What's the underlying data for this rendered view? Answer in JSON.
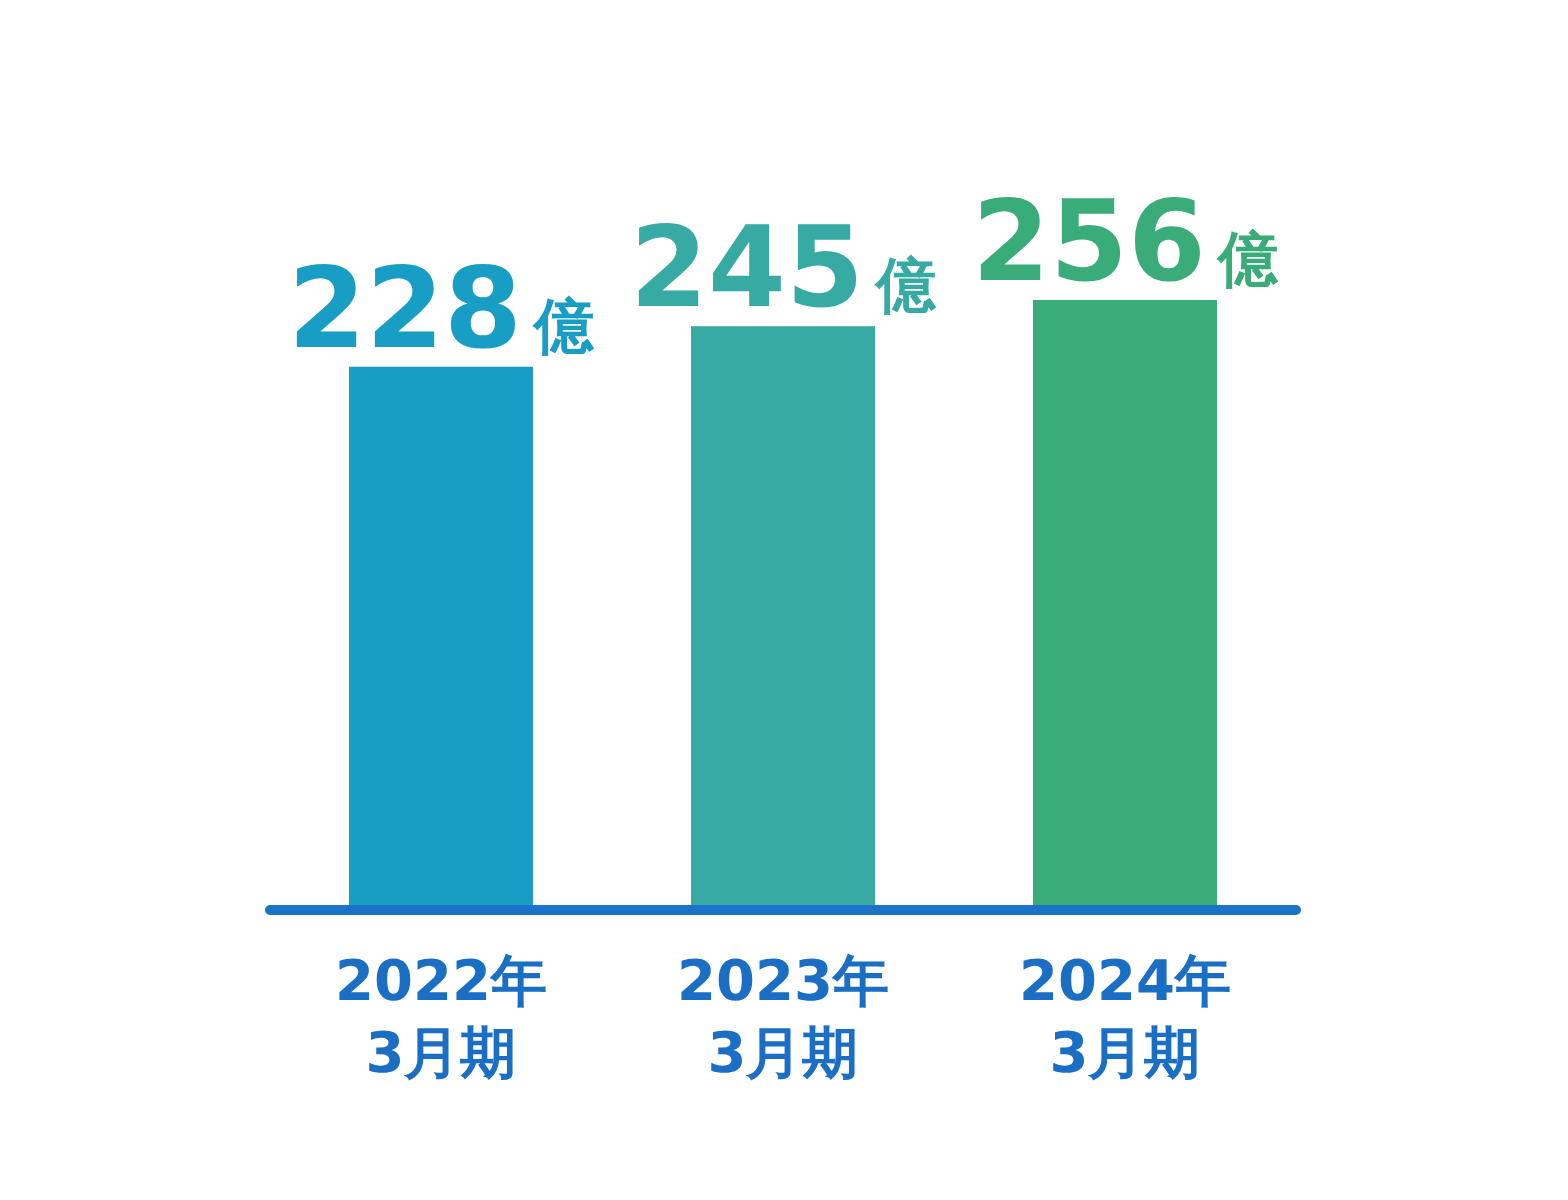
{
  "chart_data": {
    "type": "bar",
    "categories": [
      "2022年\n3月期",
      "2023年\n3月期",
      "2024年\n3月期"
    ],
    "values": [
      228,
      245,
      256
    ],
    "colors": [
      "#189dc4",
      "#37aba3",
      "#3aac7a"
    ],
    "value_labels": [
      "228億",
      "245億",
      "256億"
    ]
  }
}
